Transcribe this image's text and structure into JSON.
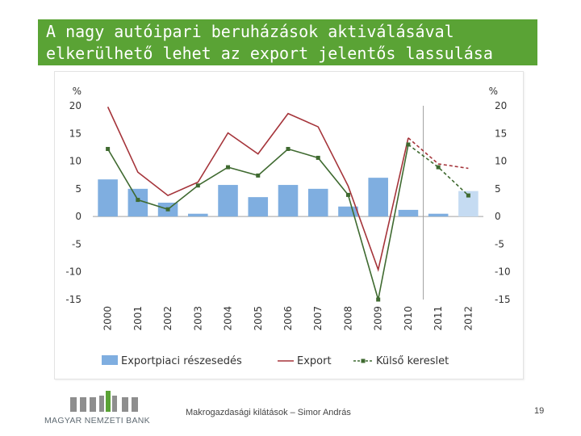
{
  "slide": {
    "title_line1": "A nagy autóipari beruházások aktiválásával",
    "title_line2": "elkerülhető lehet az export jelentős lassulása",
    "footer_caption": "Makrogazdasági kilátások – Simor András",
    "page_number": "19",
    "logo_text": "MAGYAR NEMZETI BANK",
    "colors": {
      "title_bg": "#5aa335",
      "bar": "#7faee0",
      "bar_forecast": "#c5dbf2",
      "export_line": "#a5343a",
      "demand_line": "#3f6a30"
    }
  },
  "chart_data": {
    "type": "bar+line",
    "categories": [
      "2000",
      "2001",
      "2002",
      "2003",
      "2004",
      "2005",
      "2006",
      "2007",
      "2008",
      "2009",
      "2010",
      "2011",
      "2012"
    ],
    "left_unit": "%",
    "right_unit": "%",
    "ylim": [
      -15,
      20
    ],
    "yticks": [
      -15,
      -10,
      -5,
      0,
      5,
      10,
      15,
      20
    ],
    "forecast_from": "2011",
    "series": [
      {
        "name": "Exportpiaci részesedés",
        "kind": "bar",
        "values": [
          6.7,
          5.0,
          2.5,
          0.5,
          5.7,
          3.5,
          5.7,
          5.0,
          1.8,
          7.0,
          1.2,
          0.5,
          4.6
        ]
      },
      {
        "name": "Export",
        "kind": "line",
        "values": [
          19.8,
          8.0,
          3.8,
          6.2,
          15.1,
          11.3,
          18.6,
          16.2,
          5.5,
          -9.6,
          14.2,
          9.5,
          8.7
        ]
      },
      {
        "name": "Külső kereslet",
        "kind": "line-marker",
        "values": [
          12.2,
          3.0,
          1.3,
          5.6,
          8.9,
          7.4,
          12.2,
          10.6,
          3.9,
          -15.0,
          13.0,
          8.9,
          3.8
        ]
      }
    ],
    "legend": [
      "Exportpiaci részesedés",
      "Export",
      "Külső kereslet"
    ]
  }
}
